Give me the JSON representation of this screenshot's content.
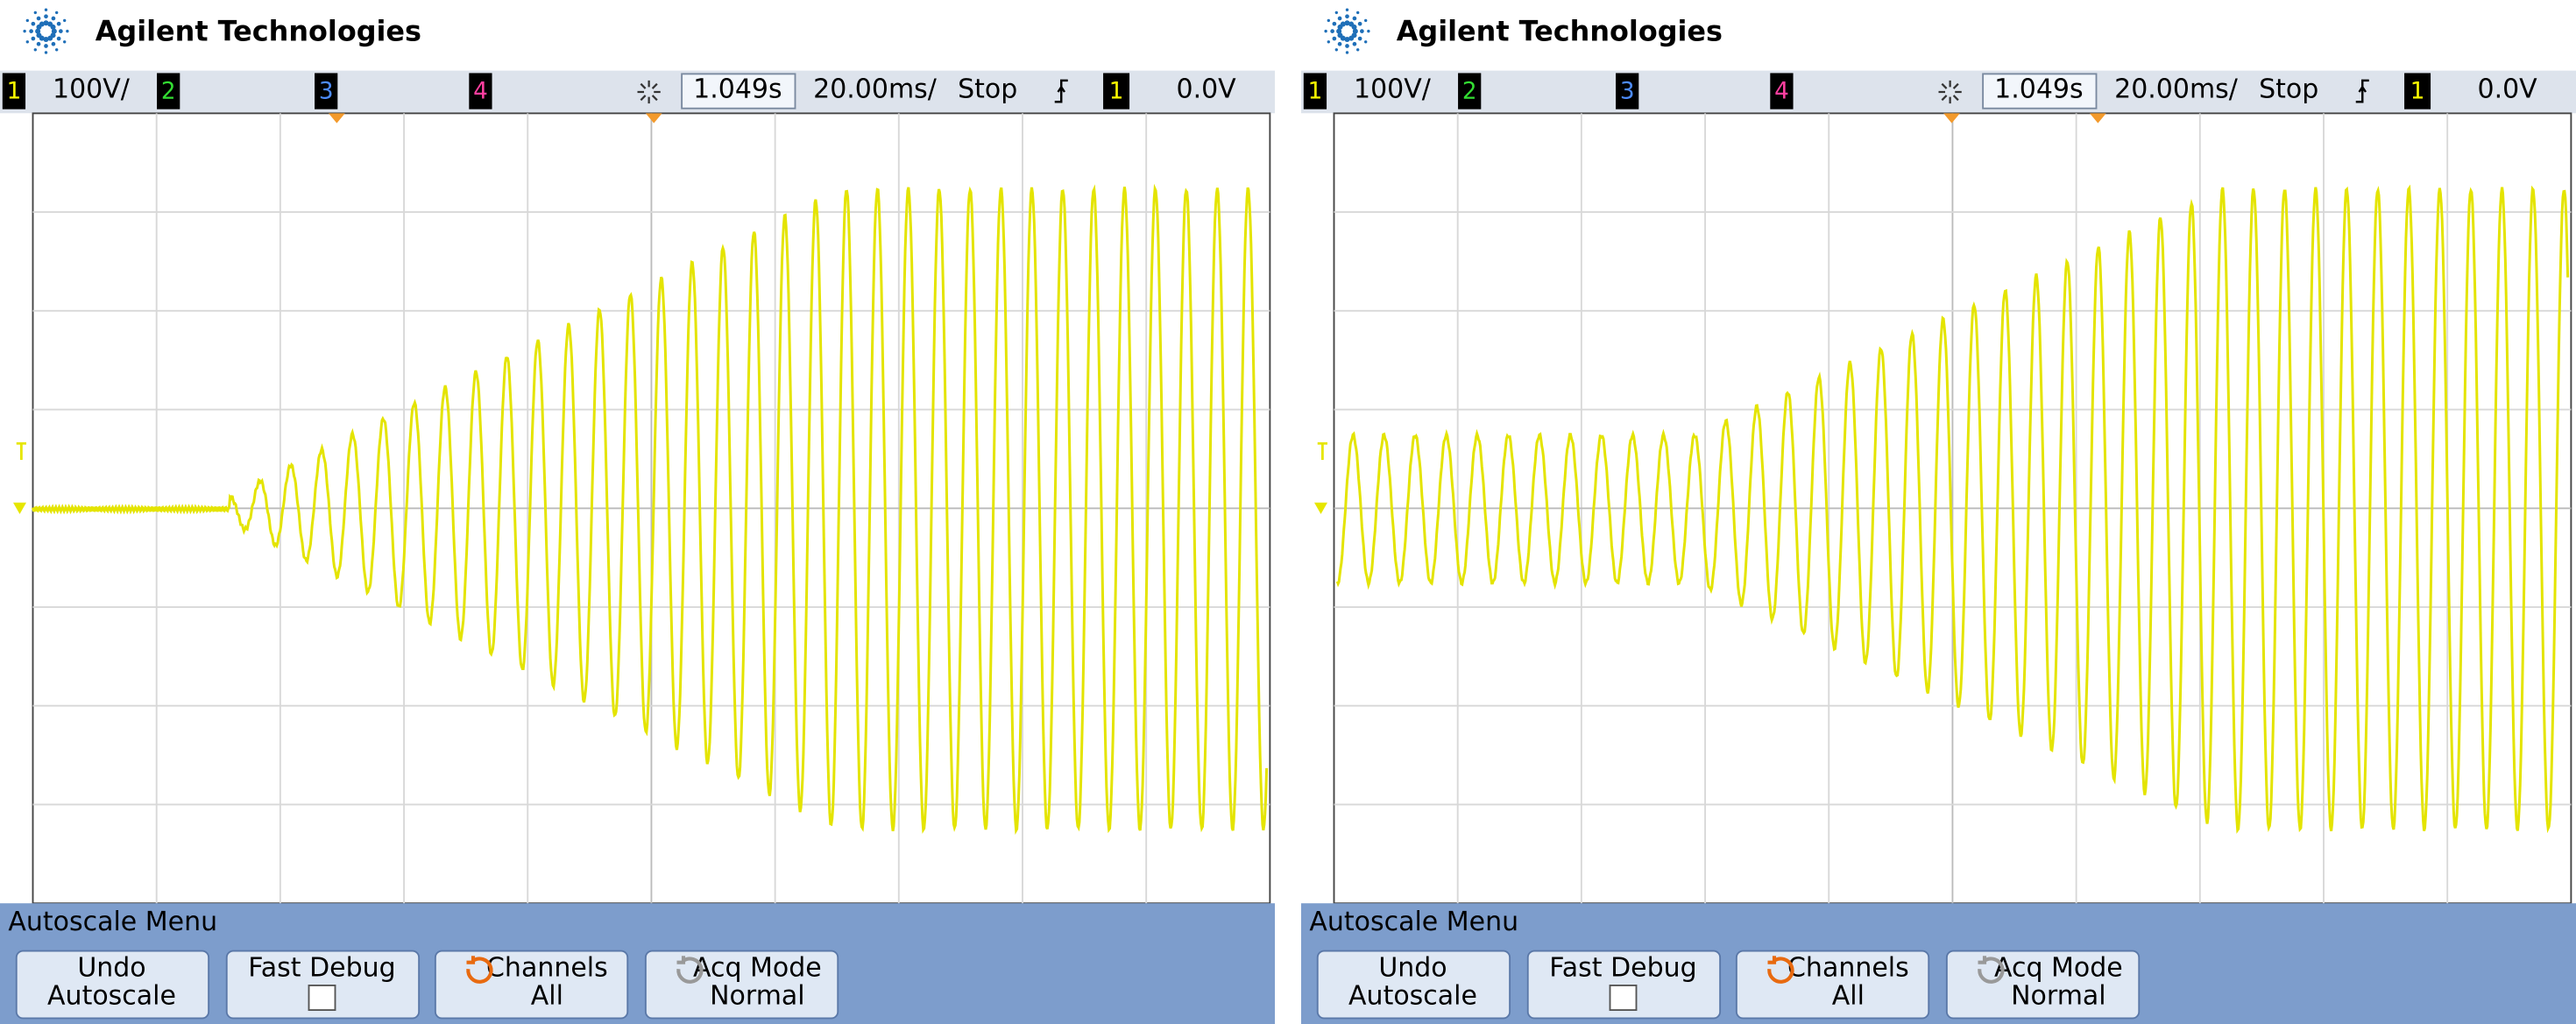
{
  "panels": [
    {
      "brand": "Agilent Technologies",
      "status": {
        "ch1": "1",
        "ch1_scale": "100V/",
        "ch2": "2",
        "ch3": "3",
        "ch4": "4",
        "delay": "1.049s",
        "timebase": "20.00ms/",
        "run_state": "Stop",
        "trigger_source": "1",
        "trigger_level": "0.0V"
      },
      "menu": {
        "title": "Autoscale Menu",
        "buttons": [
          {
            "line1": "Undo",
            "line2": "Autoscale"
          },
          {
            "line1": "Fast Debug"
          },
          {
            "line1": "Channels",
            "line2": "All"
          },
          {
            "line1": "Acq Mode",
            "line2": "Normal"
          }
        ]
      }
    },
    {
      "brand": "Agilent Technologies",
      "status": {
        "ch1": "1",
        "ch1_scale": "100V/",
        "ch2": "2",
        "ch3": "3",
        "ch4": "4",
        "delay": "1.049s",
        "timebase": "20.00ms/",
        "run_state": "Stop",
        "trigger_source": "1",
        "trigger_level": "0.0V"
      },
      "menu": {
        "title": "Autoscale Menu",
        "buttons": [
          {
            "line1": "Undo",
            "line2": "Autoscale"
          },
          {
            "line1": "Fast Debug"
          },
          {
            "line1": "Channels",
            "line2": "All"
          },
          {
            "line1": "Acq Mode",
            "line2": "Normal"
          }
        ]
      }
    }
  ]
}
